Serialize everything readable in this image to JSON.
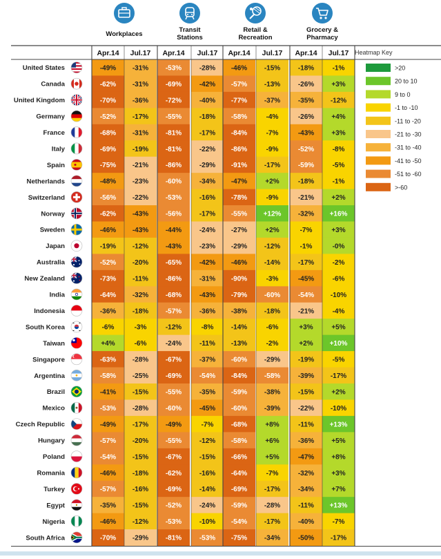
{
  "chart_data": {
    "type": "heatmap",
    "categories": [
      "Workplaces",
      "Transit Stations",
      "Retail & Recreation",
      "Grocery & Pharmacy"
    ],
    "category_lines": [
      [
        "Workplaces"
      ],
      [
        "Transit",
        "Stations"
      ],
      [
        "Retail &",
        "Recreation"
      ],
      [
        "Grocery &",
        "Pharmacy"
      ]
    ],
    "category_icons": [
      "briefcase-icon",
      "train-icon",
      "tennis-icon",
      "cart-icon"
    ],
    "periods": [
      "Apr.14",
      "Jul.17"
    ],
    "rows": [
      {
        "country": "United States",
        "flag": "us-flag-icon",
        "values": [
          -49,
          -31,
          -53,
          -28,
          -46,
          -15,
          -18,
          -1
        ]
      },
      {
        "country": "Canada",
        "flag": "canada-flag-icon",
        "values": [
          -62,
          -31,
          -69,
          -42,
          -57,
          -13,
          -26,
          3
        ]
      },
      {
        "country": "United Kingdom",
        "flag": "uk-flag-icon",
        "values": [
          -70,
          -36,
          -72,
          -40,
          -77,
          -37,
          -35,
          -12
        ]
      },
      {
        "country": "Germany",
        "flag": "germany-flag-icon",
        "values": [
          -52,
          -17,
          -55,
          -18,
          -58,
          -4,
          -26,
          4
        ]
      },
      {
        "country": "France",
        "flag": "france-flag-icon",
        "values": [
          -68,
          -31,
          -81,
          -17,
          -84,
          -7,
          -43,
          3
        ]
      },
      {
        "country": "Italy",
        "flag": "italy-flag-icon",
        "values": [
          -69,
          -19,
          -81,
          -22,
          -86,
          -9,
          -52,
          -8
        ]
      },
      {
        "country": "Spain",
        "flag": "spain-flag-icon",
        "values": [
          -75,
          -21,
          -86,
          -29,
          -91,
          -17,
          -59,
          -5
        ]
      },
      {
        "country": "Netherlands",
        "flag": "netherlands-flag-icon",
        "values": [
          -48,
          -23,
          -60,
          -34,
          -47,
          2,
          -18,
          -1
        ]
      },
      {
        "country": "Switzerland",
        "flag": "switzerland-flag-icon",
        "values": [
          -56,
          -22,
          -53,
          -16,
          -78,
          -9,
          -21,
          2
        ]
      },
      {
        "country": "Norway",
        "flag": "norway-flag-icon",
        "values": [
          -62,
          -43,
          -56,
          -17,
          -55,
          12,
          -32,
          16
        ]
      },
      {
        "country": "Sweden",
        "flag": "sweden-flag-icon",
        "values": [
          -46,
          -43,
          -44,
          -24,
          -27,
          2,
          -7,
          3
        ]
      },
      {
        "country": "Japan",
        "flag": "japan-flag-icon",
        "values": [
          -19,
          -12,
          -43,
          -23,
          -29,
          -12,
          -1,
          0
        ]
      },
      {
        "country": "Australia",
        "flag": "australia-flag-icon",
        "values": [
          -52,
          -20,
          -65,
          -42,
          -46,
          -14,
          -17,
          -2
        ]
      },
      {
        "country": "New Zealand",
        "flag": "new-zealand-flag-icon",
        "values": [
          -73,
          -11,
          -86,
          -31,
          -90,
          -3,
          -45,
          -6
        ]
      },
      {
        "country": "India",
        "flag": "india-flag-icon",
        "values": [
          -64,
          -32,
          -68,
          -43,
          -79,
          -60,
          -54,
          -10
        ]
      },
      {
        "country": "Indonesia",
        "flag": "indonesia-flag-icon",
        "values": [
          -36,
          -18,
          -57,
          -36,
          -38,
          -18,
          -21,
          -4
        ]
      },
      {
        "country": "South Korea",
        "flag": "south-korea-flag-icon",
        "values": [
          -6,
          -3,
          -12,
          -8,
          -14,
          -6,
          3,
          5
        ]
      },
      {
        "country": "Taiwan",
        "flag": "taiwan-flag-icon",
        "values": [
          4,
          -6,
          -24,
          -11,
          -13,
          -2,
          2,
          10
        ]
      },
      {
        "country": "Singapore",
        "flag": "singapore-flag-icon",
        "values": [
          -63,
          -28,
          -67,
          -37,
          -60,
          -29,
          -19,
          -5
        ]
      },
      {
        "country": "Argentina",
        "flag": "argentina-flag-icon",
        "values": [
          -58,
          -25,
          -69,
          -54,
          -84,
          -58,
          -39,
          -17
        ]
      },
      {
        "country": "Brazil",
        "flag": "brazil-flag-icon",
        "values": [
          -41,
          -15,
          -55,
          -35,
          -59,
          -38,
          -15,
          2
        ]
      },
      {
        "country": "Mexico",
        "flag": "mexico-flag-icon",
        "values": [
          -53,
          -28,
          -60,
          -45,
          -60,
          -39,
          -22,
          -10
        ]
      },
      {
        "country": "Czech Republic",
        "flag": "czech-flag-icon",
        "values": [
          -49,
          -17,
          -49,
          -7,
          -68,
          8,
          -11,
          13
        ]
      },
      {
        "country": "Hungary",
        "flag": "hungary-flag-icon",
        "values": [
          -57,
          -20,
          -55,
          -12,
          -58,
          6,
          -36,
          5
        ]
      },
      {
        "country": "Poland",
        "flag": "poland-flag-icon",
        "values": [
          -54,
          -15,
          -67,
          -15,
          -66,
          5,
          -47,
          8
        ]
      },
      {
        "country": "Romania",
        "flag": "romania-flag-icon",
        "values": [
          -46,
          -18,
          -62,
          -16,
          -64,
          -7,
          -32,
          3
        ]
      },
      {
        "country": "Turkey",
        "flag": "turkey-flag-icon",
        "values": [
          -57,
          -16,
          -69,
          -14,
          -69,
          -17,
          -34,
          7
        ]
      },
      {
        "country": "Egypt",
        "flag": "egypt-flag-icon",
        "values": [
          -35,
          -15,
          -52,
          -24,
          -59,
          -28,
          -11,
          13
        ]
      },
      {
        "country": "Nigeria",
        "flag": "nigeria-flag-icon",
        "values": [
          -46,
          -12,
          -53,
          -10,
          -54,
          -17,
          -40,
          -7
        ]
      },
      {
        "country": "South Africa",
        "flag": "south-africa-flag-icon",
        "values": [
          -70,
          -29,
          -81,
          -53,
          -75,
          -34,
          -50,
          -17
        ]
      }
    ],
    "legend": {
      "title": "Heatmap Key",
      "items": [
        {
          "label": ">20",
          "color": "#1d9a3c"
        },
        {
          "label": "20 to 10",
          "color": "#6cc62a"
        },
        {
          "label": "9 to 0",
          "color": "#b4d92b"
        },
        {
          "label": "-1 to -10",
          "color": "#f9d400"
        },
        {
          "label": "-11 to -20",
          "color": "#f3c419"
        },
        {
          "label": "-21 to -30",
          "color": "#f9c68a"
        },
        {
          "label": "-31 to -40",
          "color": "#f6b23a"
        },
        {
          "label": "-41 to -50",
          "color": "#f39a12"
        },
        {
          "label": "-51 to -60",
          "color": "#ea8a33"
        },
        {
          "label": ">-60",
          "color": "#db6514"
        }
      ]
    }
  },
  "colors": {
    "icon_circle": "#2a85c0",
    "grid_line": "#444444",
    "header_text": "#111111"
  }
}
